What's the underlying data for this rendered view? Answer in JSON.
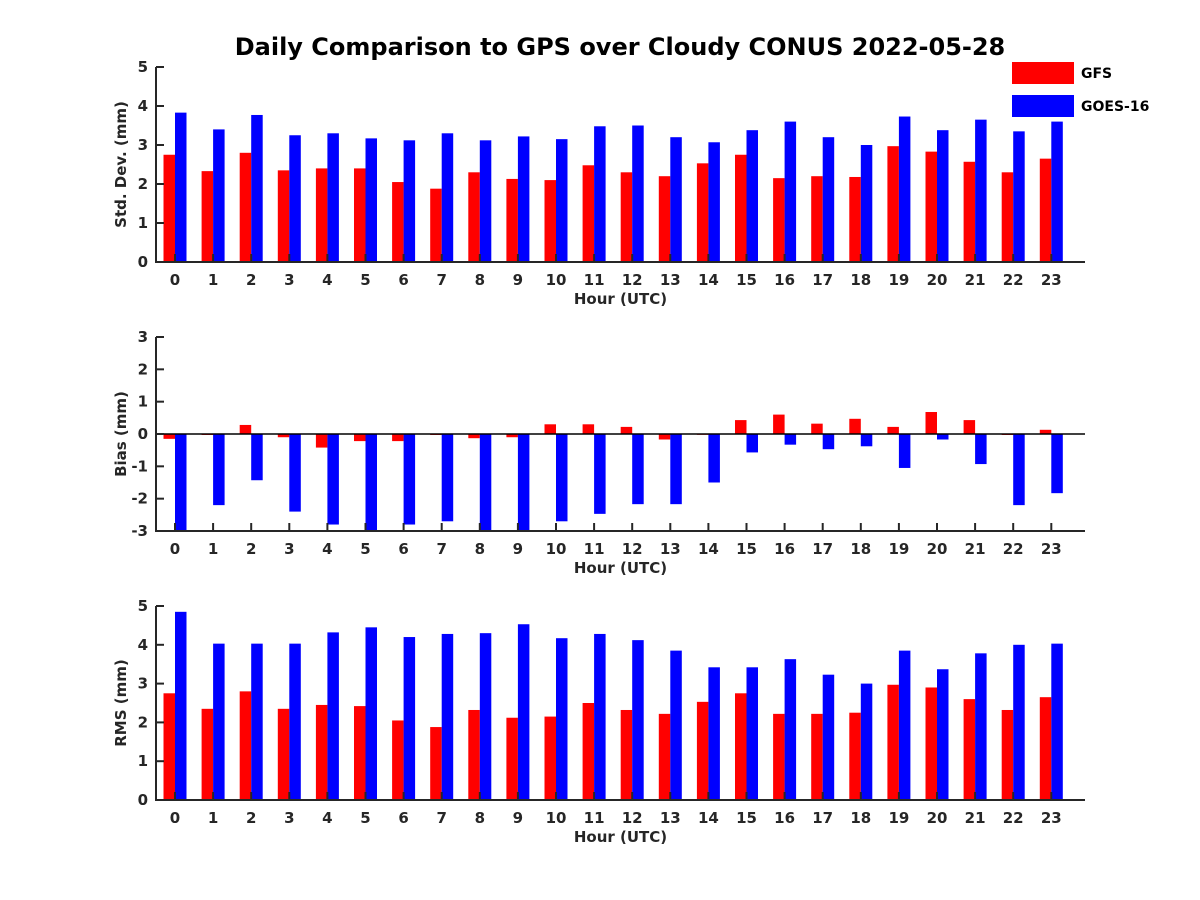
{
  "figure": {
    "title": "Daily Comparison to GPS over Cloudy CONUS 2022-05-28"
  },
  "colors": {
    "GFS": "#ff0000",
    "GOES-16": "#0000ff"
  },
  "legend": [
    "GFS",
    "GOES-16"
  ],
  "chart_data": [
    {
      "type": "bar",
      "id": "std",
      "title": "Daily Comparison to GPS over Cloudy CONUS 2022-05-28",
      "xlabel": "Hour (UTC)",
      "ylabel": "Std. Dev. (mm)",
      "ylim": [
        0,
        5
      ],
      "yticks": [
        "0",
        "1",
        "2",
        "3",
        "4",
        "5"
      ],
      "categories": [
        "0",
        "1",
        "2",
        "3",
        "4",
        "5",
        "6",
        "7",
        "8",
        "9",
        "10",
        "11",
        "12",
        "13",
        "14",
        "15",
        "16",
        "17",
        "18",
        "19",
        "20",
        "21",
        "22",
        "23"
      ],
      "series": [
        {
          "name": "GFS",
          "values": [
            2.75,
            2.33,
            2.8,
            2.35,
            2.4,
            2.4,
            2.05,
            1.88,
            2.3,
            2.13,
            2.1,
            2.48,
            2.3,
            2.2,
            2.53,
            2.75,
            2.15,
            2.2,
            2.18,
            2.97,
            2.83,
            2.57,
            2.3,
            2.65
          ]
        },
        {
          "name": "GOES-16",
          "values": [
            3.83,
            3.4,
            3.77,
            3.25,
            3.3,
            3.17,
            3.12,
            3.3,
            3.12,
            3.22,
            3.15,
            3.48,
            3.5,
            3.2,
            3.07,
            3.38,
            3.6,
            3.2,
            3.0,
            3.73,
            3.38,
            3.65,
            3.35,
            3.6
          ]
        }
      ]
    },
    {
      "type": "bar",
      "id": "bias",
      "xlabel": "Hour (UTC)",
      "ylabel": "Bias (mm)",
      "ylim": [
        -3,
        3
      ],
      "yticks": [
        "-3",
        "-2",
        "-1",
        "0",
        "1",
        "2",
        "3"
      ],
      "categories": [
        "0",
        "1",
        "2",
        "3",
        "4",
        "5",
        "6",
        "7",
        "8",
        "9",
        "10",
        "11",
        "12",
        "13",
        "14",
        "15",
        "16",
        "17",
        "18",
        "19",
        "20",
        "21",
        "22",
        "23"
      ],
      "series": [
        {
          "name": "GFS",
          "values": [
            -0.15,
            -0.03,
            0.28,
            -0.1,
            -0.42,
            -0.22,
            -0.22,
            -0.03,
            -0.13,
            -0.1,
            0.3,
            0.3,
            0.22,
            -0.17,
            0.0,
            0.43,
            0.6,
            0.32,
            0.47,
            0.22,
            0.68,
            0.43,
            -0.03,
            0.13
          ]
        },
        {
          "name": "GOES-16",
          "values": [
            -3.0,
            -2.2,
            -1.43,
            -2.4,
            -2.8,
            -3.0,
            -2.8,
            -2.7,
            -3.0,
            -3.0,
            -2.7,
            -2.47,
            -2.17,
            -2.17,
            -1.5,
            -0.57,
            -0.33,
            -0.47,
            -0.38,
            -1.05,
            -0.17,
            -0.93,
            -2.2,
            -1.83
          ]
        }
      ]
    },
    {
      "type": "bar",
      "id": "rms",
      "xlabel": "Hour (UTC)",
      "ylabel": "RMS (mm)",
      "ylim": [
        0,
        5
      ],
      "yticks": [
        "0",
        "1",
        "2",
        "3",
        "4",
        "5"
      ],
      "categories": [
        "0",
        "1",
        "2",
        "3",
        "4",
        "5",
        "6",
        "7",
        "8",
        "9",
        "10",
        "11",
        "12",
        "13",
        "14",
        "15",
        "16",
        "17",
        "18",
        "19",
        "20",
        "21",
        "22",
        "23"
      ],
      "series": [
        {
          "name": "GFS",
          "values": [
            2.75,
            2.35,
            2.8,
            2.35,
            2.45,
            2.42,
            2.05,
            1.88,
            2.32,
            2.12,
            2.15,
            2.5,
            2.32,
            2.22,
            2.53,
            2.75,
            2.22,
            2.22,
            2.25,
            2.97,
            2.9,
            2.6,
            2.32,
            2.65
          ]
        },
        {
          "name": "GOES-16",
          "values": [
            4.85,
            4.03,
            4.03,
            4.03,
            4.32,
            4.45,
            4.2,
            4.28,
            4.3,
            4.53,
            4.17,
            4.28,
            4.12,
            3.85,
            3.42,
            3.42,
            3.63,
            3.23,
            3.0,
            3.85,
            3.37,
            3.78,
            4.0,
            4.03
          ]
        }
      ]
    }
  ]
}
